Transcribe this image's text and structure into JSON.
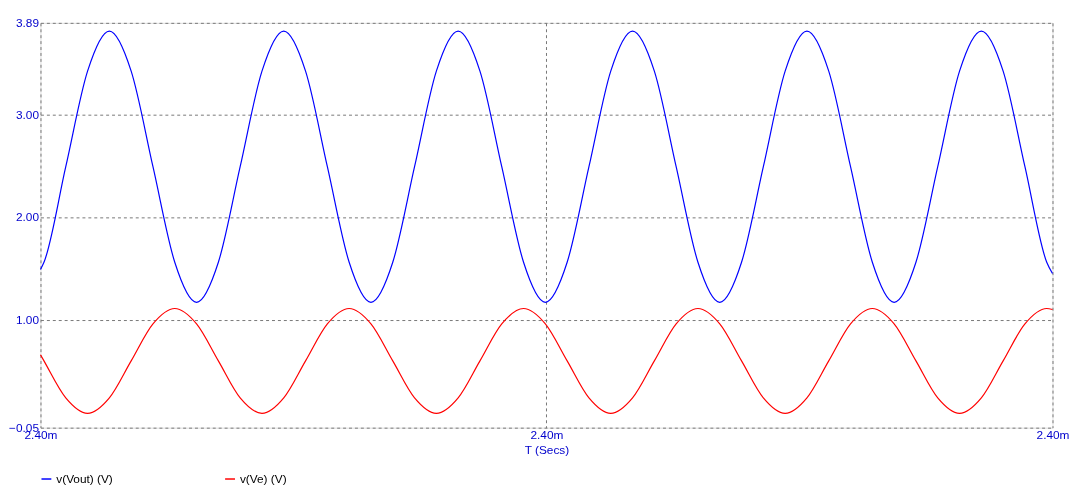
{
  "chart_data": {
    "type": "line",
    "xlabel": "T (Secs)",
    "x": [
      2.399984,
      2.4,
      2.4001,
      2.4002,
      2.4003,
      2.4004,
      2.4005,
      2.4006,
      2.4007,
      2.4008,
      2.4009,
      2.401,
      2.4011,
      2.4012,
      2.4013,
      2.4014,
      2.4015,
      2.4016,
      2.4017,
      2.4018,
      2.4019,
      2.402,
      2.4021,
      2.4022,
      2.4023,
      2.4024,
      2.4025,
      2.4026,
      2.4027,
      2.4028,
      2.4029,
      2.403,
      2.4031,
      2.4032,
      2.4033,
      2.4034,
      2.4035,
      2.4036,
      2.4037,
      2.4038,
      2.4039,
      2.404,
      2.4041,
      2.4042,
      2.4043,
      2.4044,
      2.4045,
      2.4046,
      2.4046264
    ],
    "series": [
      {
        "name": "v(Vout) (V)",
        "color": "#0000ff",
        "values": [
          1.49,
          1.56,
          2.49,
          3.42,
          3.81,
          3.42,
          2.49,
          1.56,
          1.17,
          1.56,
          2.49,
          3.42,
          3.81,
          3.42,
          2.49,
          1.56,
          1.17,
          1.56,
          2.49,
          3.42,
          3.81,
          3.42,
          2.49,
          1.56,
          1.17,
          1.56,
          2.49,
          3.42,
          3.81,
          3.42,
          2.49,
          1.56,
          1.17,
          1.56,
          2.49,
          3.42,
          3.81,
          3.42,
          2.49,
          1.56,
          1.17,
          1.56,
          2.49,
          3.42,
          3.81,
          3.42,
          2.49,
          1.56,
          1.45
        ]
      },
      {
        "name": "v(Ve) (V)",
        "color": "#ff0000",
        "values": [
          0.66,
          0.6,
          0.24,
          0.09,
          0.24,
          0.6,
          0.96,
          1.11,
          0.96,
          0.6,
          0.24,
          0.09,
          0.24,
          0.6,
          0.96,
          1.11,
          0.96,
          0.6,
          0.24,
          0.09,
          0.24,
          0.6,
          0.96,
          1.11,
          0.96,
          0.6,
          0.24,
          0.09,
          0.24,
          0.6,
          0.96,
          1.11,
          0.96,
          0.6,
          0.24,
          0.09,
          0.24,
          0.6,
          0.96,
          1.11,
          0.96,
          0.6,
          0.24,
          0.09,
          0.24,
          0.6,
          0.96,
          1.11,
          1.1
        ]
      }
    ],
    "xlim": [
      2.399984,
      2.4046264
    ],
    "xticks": [
      {
        "value": 2.399984,
        "label": "2.40m"
      },
      {
        "value": 2.402305,
        "label": "2.40m"
      },
      {
        "value": 2.4046264,
        "label": "2.40m"
      }
    ],
    "ylim": [
      -0.05,
      3.89
    ],
    "yticks": [
      -0.05,
      {
        "value": 1,
        "label": "1.00"
      },
      {
        "value": 2,
        "label": "2.00"
      },
      {
        "value": 3,
        "label": "3.00"
      },
      3.89
    ],
    "grid": true,
    "legend": "bottom",
    "marker": "none",
    "line_style": "solid"
  }
}
